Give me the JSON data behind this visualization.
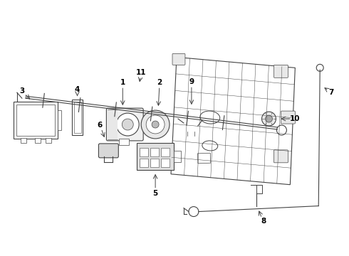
{
  "bg_color": "#ffffff",
  "line_color": "#444444",
  "fig_width": 4.9,
  "fig_height": 3.6,
  "dpi": 100
}
